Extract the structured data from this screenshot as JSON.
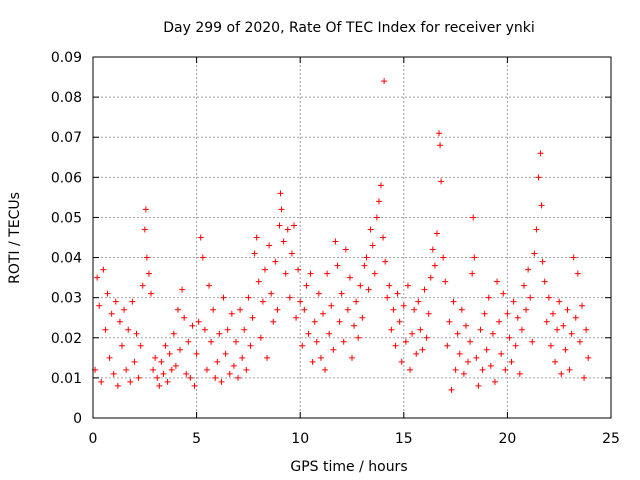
{
  "chart_data": {
    "type": "scatter",
    "title": "Day 299 of 2020, Rate Of TEC Index for receiver ynki",
    "xlabel": "GPS time / hours",
    "ylabel": "ROTI / TECUs",
    "xlim": [
      0,
      25
    ],
    "ylim": [
      0,
      0.09
    ],
    "xticks": [
      "0",
      "5",
      "10",
      "15",
      "20",
      "25"
    ],
    "yticks": [
      "0",
      "0.01",
      "0.02",
      "0.03",
      "0.04",
      "0.05",
      "0.06",
      "0.07",
      "0.08",
      "0.09"
    ],
    "grid": true,
    "marker": "+",
    "color": "#ff0000",
    "points": [
      [
        0.1,
        0.012
      ],
      [
        0.2,
        0.035
      ],
      [
        0.3,
        0.028
      ],
      [
        0.4,
        0.009
      ],
      [
        0.5,
        0.037
      ],
      [
        0.6,
        0.022
      ],
      [
        0.7,
        0.031
      ],
      [
        0.8,
        0.015
      ],
      [
        0.9,
        0.026
      ],
      [
        1.0,
        0.011
      ],
      [
        1.1,
        0.029
      ],
      [
        1.2,
        0.008
      ],
      [
        1.3,
        0.024
      ],
      [
        1.4,
        0.018
      ],
      [
        1.5,
        0.027
      ],
      [
        1.6,
        0.012
      ],
      [
        1.7,
        0.022
      ],
      [
        1.8,
        0.009
      ],
      [
        1.9,
        0.029
      ],
      [
        2.0,
        0.014
      ],
      [
        2.1,
        0.021
      ],
      [
        2.2,
        0.01
      ],
      [
        2.3,
        0.018
      ],
      [
        2.4,
        0.033
      ],
      [
        2.5,
        0.047
      ],
      [
        2.55,
        0.052
      ],
      [
        2.6,
        0.04
      ],
      [
        2.7,
        0.036
      ],
      [
        2.8,
        0.031
      ],
      [
        2.9,
        0.012
      ],
      [
        3.0,
        0.015
      ],
      [
        3.1,
        0.01
      ],
      [
        3.2,
        0.008
      ],
      [
        3.3,
        0.014
      ],
      [
        3.4,
        0.011
      ],
      [
        3.5,
        0.018
      ],
      [
        3.6,
        0.009
      ],
      [
        3.7,
        0.016
      ],
      [
        3.8,
        0.012
      ],
      [
        3.9,
        0.021
      ],
      [
        4.0,
        0.013
      ],
      [
        4.1,
        0.027
      ],
      [
        4.2,
        0.017
      ],
      [
        4.3,
        0.032
      ],
      [
        4.4,
        0.025
      ],
      [
        4.5,
        0.011
      ],
      [
        4.6,
        0.019
      ],
      [
        4.7,
        0.01
      ],
      [
        4.8,
        0.023
      ],
      [
        4.9,
        0.008
      ],
      [
        5.0,
        0.016
      ],
      [
        5.1,
        0.024
      ],
      [
        5.2,
        0.045
      ],
      [
        5.3,
        0.04
      ],
      [
        5.4,
        0.022
      ],
      [
        5.5,
        0.012
      ],
      [
        5.6,
        0.033
      ],
      [
        5.7,
        0.019
      ],
      [
        5.8,
        0.027
      ],
      [
        5.9,
        0.01
      ],
      [
        6.0,
        0.014
      ],
      [
        6.1,
        0.021
      ],
      [
        6.2,
        0.009
      ],
      [
        6.3,
        0.03
      ],
      [
        6.4,
        0.016
      ],
      [
        6.5,
        0.022
      ],
      [
        6.6,
        0.011
      ],
      [
        6.7,
        0.026
      ],
      [
        6.8,
        0.013
      ],
      [
        6.9,
        0.019
      ],
      [
        7.0,
        0.01
      ],
      [
        7.1,
        0.027
      ],
      [
        7.2,
        0.015
      ],
      [
        7.3,
        0.022
      ],
      [
        7.4,
        0.012
      ],
      [
        7.5,
        0.03
      ],
      [
        7.6,
        0.018
      ],
      [
        7.7,
        0.025
      ],
      [
        7.8,
        0.041
      ],
      [
        7.9,
        0.045
      ],
      [
        8.0,
        0.034
      ],
      [
        8.1,
        0.02
      ],
      [
        8.2,
        0.029
      ],
      [
        8.3,
        0.037
      ],
      [
        8.4,
        0.015
      ],
      [
        8.5,
        0.043
      ],
      [
        8.6,
        0.031
      ],
      [
        8.7,
        0.024
      ],
      [
        8.8,
        0.039
      ],
      [
        8.9,
        0.027
      ],
      [
        9.0,
        0.048
      ],
      [
        9.05,
        0.056
      ],
      [
        9.1,
        0.052
      ],
      [
        9.2,
        0.044
      ],
      [
        9.3,
        0.036
      ],
      [
        9.4,
        0.047
      ],
      [
        9.5,
        0.03
      ],
      [
        9.6,
        0.041
      ],
      [
        9.7,
        0.048
      ],
      [
        9.8,
        0.025
      ],
      [
        9.9,
        0.037
      ],
      [
        10.0,
        0.029
      ],
      [
        10.1,
        0.018
      ],
      [
        10.2,
        0.027
      ],
      [
        10.3,
        0.033
      ],
      [
        10.4,
        0.021
      ],
      [
        10.5,
        0.036
      ],
      [
        10.6,
        0.014
      ],
      [
        10.7,
        0.024
      ],
      [
        10.8,
        0.019
      ],
      [
        10.9,
        0.031
      ],
      [
        11.0,
        0.015
      ],
      [
        11.1,
        0.026
      ],
      [
        11.2,
        0.012
      ],
      [
        11.3,
        0.036
      ],
      [
        11.4,
        0.021
      ],
      [
        11.5,
        0.028
      ],
      [
        11.6,
        0.017
      ],
      [
        11.7,
        0.044
      ],
      [
        11.8,
        0.038
      ],
      [
        11.9,
        0.024
      ],
      [
        12.0,
        0.031
      ],
      [
        12.1,
        0.019
      ],
      [
        12.2,
        0.042
      ],
      [
        12.3,
        0.027
      ],
      [
        12.4,
        0.035
      ],
      [
        12.5,
        0.015
      ],
      [
        12.6,
        0.023
      ],
      [
        12.7,
        0.029
      ],
      [
        12.8,
        0.02
      ],
      [
        12.9,
        0.033
      ],
      [
        13.0,
        0.025
      ],
      [
        13.1,
        0.038
      ],
      [
        13.2,
        0.04
      ],
      [
        13.3,
        0.032
      ],
      [
        13.4,
        0.047
      ],
      [
        13.5,
        0.043
      ],
      [
        13.6,
        0.036
      ],
      [
        13.7,
        0.05
      ],
      [
        13.8,
        0.054
      ],
      [
        13.9,
        0.058
      ],
      [
        14.0,
        0.045
      ],
      [
        14.05,
        0.084
      ],
      [
        14.1,
        0.039
      ],
      [
        14.2,
        0.03
      ],
      [
        14.3,
        0.033
      ],
      [
        14.4,
        0.022
      ],
      [
        14.5,
        0.027
      ],
      [
        14.6,
        0.018
      ],
      [
        14.7,
        0.031
      ],
      [
        14.8,
        0.024
      ],
      [
        14.9,
        0.014
      ],
      [
        15.0,
        0.028
      ],
      [
        15.1,
        0.019
      ],
      [
        15.2,
        0.033
      ],
      [
        15.3,
        0.012
      ],
      [
        15.4,
        0.021
      ],
      [
        15.5,
        0.027
      ],
      [
        15.6,
        0.016
      ],
      [
        15.7,
        0.029
      ],
      [
        15.8,
        0.022
      ],
      [
        15.9,
        0.017
      ],
      [
        16.0,
        0.032
      ],
      [
        16.1,
        0.02
      ],
      [
        16.2,
        0.026
      ],
      [
        16.3,
        0.035
      ],
      [
        16.4,
        0.042
      ],
      [
        16.5,
        0.038
      ],
      [
        16.6,
        0.046
      ],
      [
        16.7,
        0.071
      ],
      [
        16.75,
        0.068
      ],
      [
        16.8,
        0.059
      ],
      [
        16.9,
        0.04
      ],
      [
        17.0,
        0.034
      ],
      [
        17.1,
        0.018
      ],
      [
        17.2,
        0.024
      ],
      [
        17.3,
        0.007
      ],
      [
        17.4,
        0.029
      ],
      [
        17.5,
        0.012
      ],
      [
        17.6,
        0.021
      ],
      [
        17.7,
        0.016
      ],
      [
        17.8,
        0.027
      ],
      [
        17.9,
        0.011
      ],
      [
        18.0,
        0.023
      ],
      [
        18.1,
        0.014
      ],
      [
        18.2,
        0.019
      ],
      [
        18.3,
        0.036
      ],
      [
        18.35,
        0.05
      ],
      [
        18.4,
        0.04
      ],
      [
        18.5,
        0.015
      ],
      [
        18.6,
        0.008
      ],
      [
        18.7,
        0.022
      ],
      [
        18.8,
        0.012
      ],
      [
        18.9,
        0.026
      ],
      [
        19.0,
        0.017
      ],
      [
        19.1,
        0.03
      ],
      [
        19.2,
        0.013
      ],
      [
        19.3,
        0.021
      ],
      [
        19.4,
        0.009
      ],
      [
        19.5,
        0.034
      ],
      [
        19.6,
        0.024
      ],
      [
        19.7,
        0.016
      ],
      [
        19.8,
        0.031
      ],
      [
        19.9,
        0.012
      ],
      [
        20.0,
        0.026
      ],
      [
        20.1,
        0.02
      ],
      [
        20.2,
        0.014
      ],
      [
        20.3,
        0.029
      ],
      [
        20.4,
        0.018
      ],
      [
        20.5,
        0.025
      ],
      [
        20.6,
        0.011
      ],
      [
        20.7,
        0.022
      ],
      [
        20.8,
        0.033
      ],
      [
        20.9,
        0.027
      ],
      [
        21.0,
        0.037
      ],
      [
        21.1,
        0.03
      ],
      [
        21.2,
        0.019
      ],
      [
        21.3,
        0.041
      ],
      [
        21.4,
        0.047
      ],
      [
        21.5,
        0.06
      ],
      [
        21.6,
        0.066
      ],
      [
        21.65,
        0.053
      ],
      [
        21.7,
        0.039
      ],
      [
        21.8,
        0.034
      ],
      [
        21.9,
        0.024
      ],
      [
        22.0,
        0.03
      ],
      [
        22.1,
        0.018
      ],
      [
        22.2,
        0.026
      ],
      [
        22.3,
        0.014
      ],
      [
        22.4,
        0.022
      ],
      [
        22.5,
        0.029
      ],
      [
        22.6,
        0.011
      ],
      [
        22.7,
        0.023
      ],
      [
        22.8,
        0.017
      ],
      [
        22.9,
        0.027
      ],
      [
        23.0,
        0.012
      ],
      [
        23.1,
        0.021
      ],
      [
        23.2,
        0.04
      ],
      [
        23.3,
        0.025
      ],
      [
        23.4,
        0.036
      ],
      [
        23.5,
        0.019
      ],
      [
        23.6,
        0.028
      ],
      [
        23.7,
        0.01
      ],
      [
        23.8,
        0.022
      ],
      [
        23.9,
        0.015
      ]
    ]
  }
}
